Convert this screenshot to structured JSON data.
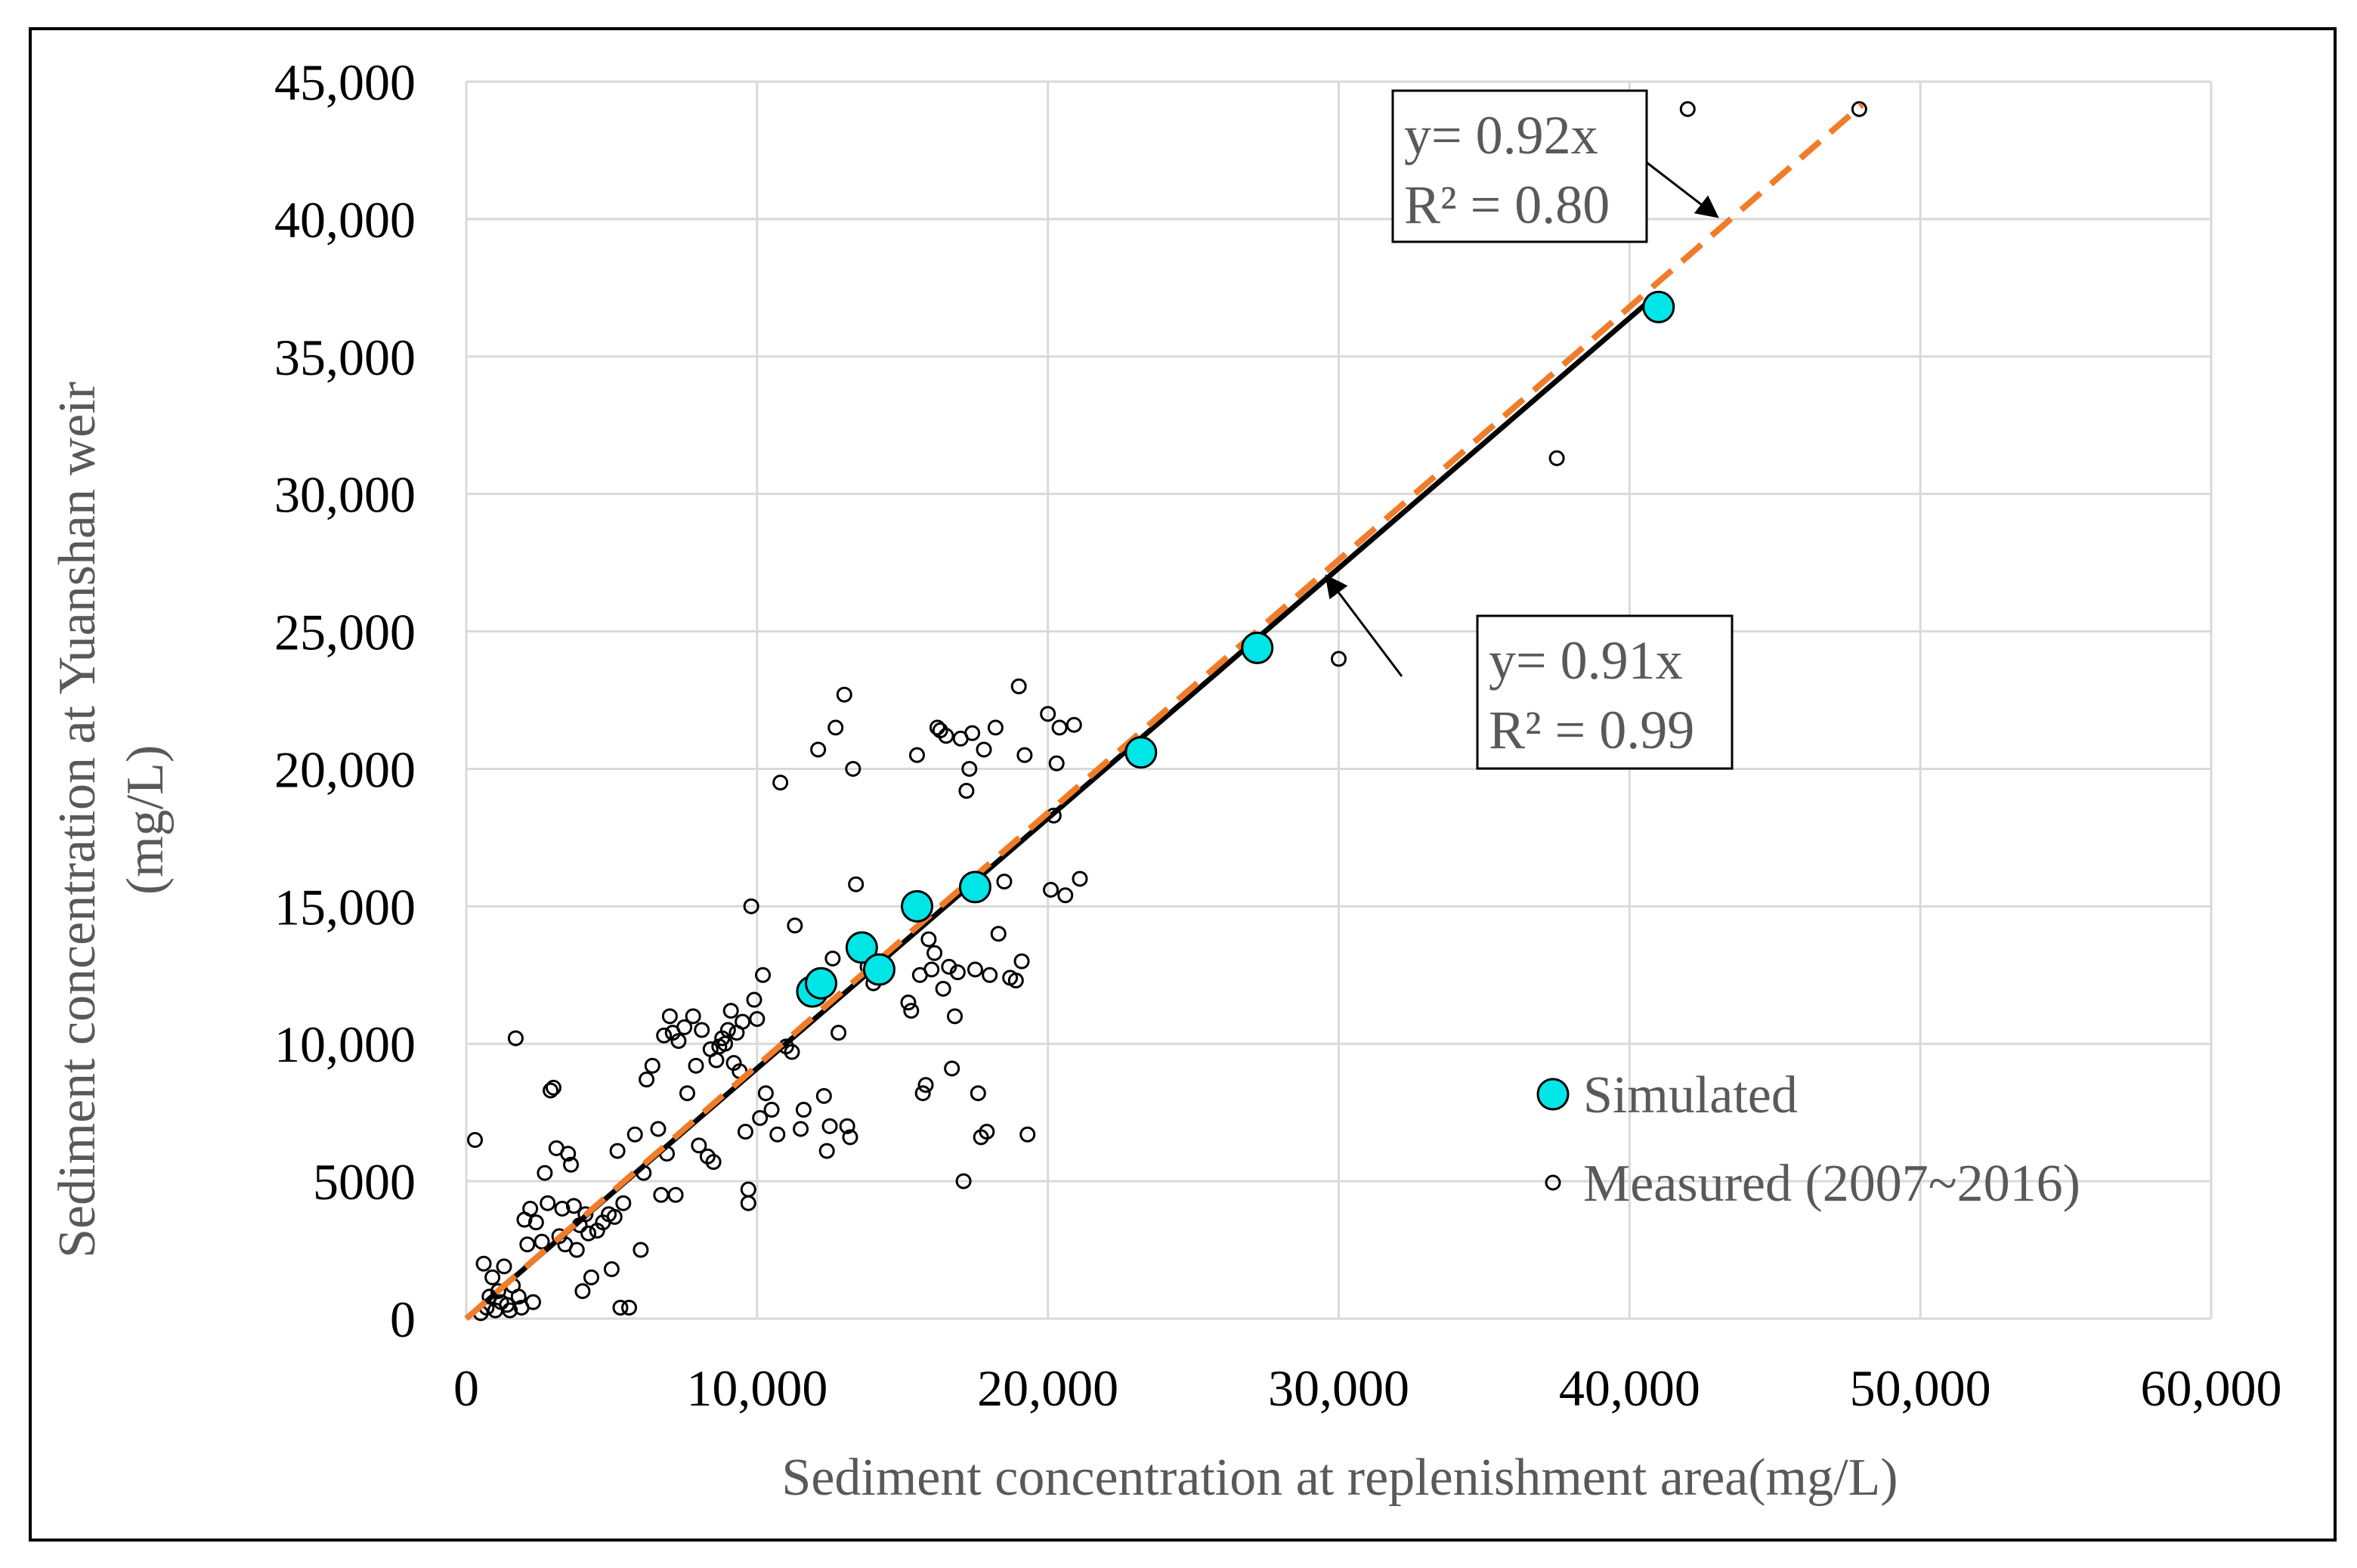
{
  "chart_data": {
    "type": "scatter",
    "title": "",
    "xlabel": "Sediment concentration at replenishment area(mg/L)",
    "ylabel_line1": "Sediment concentration at Yuanshan weir",
    "ylabel_line2": "(mg/L)",
    "xlim": [
      0,
      60000
    ],
    "ylim": [
      0,
      45000
    ],
    "x_ticks": [
      {
        "value": 0,
        "label": "0"
      },
      {
        "value": 10000,
        "label": "10,000"
      },
      {
        "value": 20000,
        "label": "20,000"
      },
      {
        "value": 30000,
        "label": "30,000"
      },
      {
        "value": 40000,
        "label": "40,000"
      },
      {
        "value": 50000,
        "label": "50,000"
      },
      {
        "value": 60000,
        "label": "60,000"
      }
    ],
    "y_ticks": [
      {
        "value": 0,
        "label": "0"
      },
      {
        "value": 5000,
        "label": "5000"
      },
      {
        "value": 10000,
        "label": "10,000"
      },
      {
        "value": 15000,
        "label": "15,000"
      },
      {
        "value": 20000,
        "label": "20,000"
      },
      {
        "value": 25000,
        "label": "25,000"
      },
      {
        "value": 30000,
        "label": "30,000"
      },
      {
        "value": 35000,
        "label": "35,000"
      },
      {
        "value": 40000,
        "label": "40,000"
      },
      {
        "value": 45000,
        "label": "45,000"
      }
    ],
    "grid": true,
    "legend_position": "bottom-right",
    "series": [
      {
        "name": "Simulated",
        "color": "#00E5E5",
        "marker": "filled-circle",
        "points": [
          [
            11900,
            11900
          ],
          [
            12200,
            12200
          ],
          [
            13600,
            13500
          ],
          [
            14200,
            12700
          ],
          [
            15500,
            15000
          ],
          [
            17500,
            15700
          ],
          [
            23200,
            20600
          ],
          [
            27200,
            24400
          ],
          [
            41000,
            36800
          ]
        ]
      },
      {
        "name": "Measured (2007~2016)",
        "color": "#000000",
        "marker": "open-circle",
        "points": [
          [
            300,
            6500
          ],
          [
            500,
            200
          ],
          [
            600,
            2000
          ],
          [
            700,
            400
          ],
          [
            800,
            800
          ],
          [
            900,
            1500
          ],
          [
            1000,
            300
          ],
          [
            1100,
            1000
          ],
          [
            1200,
            600
          ],
          [
            1300,
            1900
          ],
          [
            1400,
            500
          ],
          [
            1500,
            300
          ],
          [
            1600,
            1200
          ],
          [
            1700,
            10200
          ],
          [
            1800,
            800
          ],
          [
            1900,
            400
          ],
          [
            2000,
            3600
          ],
          [
            2100,
            2700
          ],
          [
            2200,
            4000
          ],
          [
            2300,
            600
          ],
          [
            2400,
            3500
          ],
          [
            2600,
            2800
          ],
          [
            2700,
            5300
          ],
          [
            2800,
            4200
          ],
          [
            2900,
            8300
          ],
          [
            3000,
            8400
          ],
          [
            3100,
            6200
          ],
          [
            3200,
            3000
          ],
          [
            3300,
            4000
          ],
          [
            3400,
            2700
          ],
          [
            3500,
            6000
          ],
          [
            3600,
            5600
          ],
          [
            3700,
            4100
          ],
          [
            3800,
            2500
          ],
          [
            3900,
            3400
          ],
          [
            4000,
            1000
          ],
          [
            4100,
            3800
          ],
          [
            4200,
            3100
          ],
          [
            4300,
            1500
          ],
          [
            4500,
            3200
          ],
          [
            4700,
            3500
          ],
          [
            4900,
            3800
          ],
          [
            5000,
            1800
          ],
          [
            5100,
            3700
          ],
          [
            5200,
            6100
          ],
          [
            5300,
            400
          ],
          [
            5400,
            4200
          ],
          [
            5600,
            400
          ],
          [
            5800,
            6700
          ],
          [
            6000,
            2500
          ],
          [
            6100,
            5300
          ],
          [
            6200,
            8700
          ],
          [
            6400,
            9200
          ],
          [
            6600,
            6900
          ],
          [
            6700,
            4500
          ],
          [
            6800,
            10300
          ],
          [
            6900,
            6000
          ],
          [
            7000,
            11000
          ],
          [
            7100,
            10400
          ],
          [
            7200,
            4500
          ],
          [
            7300,
            10100
          ],
          [
            7500,
            10600
          ],
          [
            7600,
            8200
          ],
          [
            7800,
            11000
          ],
          [
            7900,
            9200
          ],
          [
            8000,
            6300
          ],
          [
            8100,
            10500
          ],
          [
            8300,
            5900
          ],
          [
            8400,
            9800
          ],
          [
            8500,
            5700
          ],
          [
            8600,
            9400
          ],
          [
            8700,
            9900
          ],
          [
            8800,
            10200
          ],
          [
            8900,
            10000
          ],
          [
            9000,
            10500
          ],
          [
            9100,
            11200
          ],
          [
            9200,
            9300
          ],
          [
            9300,
            10400
          ],
          [
            9400,
            9000
          ],
          [
            9500,
            10800
          ],
          [
            9600,
            6800
          ],
          [
            9700,
            4200
          ],
          [
            9700,
            4700
          ],
          [
            9800,
            15000
          ],
          [
            9900,
            11600
          ],
          [
            10000,
            10900
          ],
          [
            10100,
            7300
          ],
          [
            10200,
            12500
          ],
          [
            10300,
            8200
          ],
          [
            10500,
            7600
          ],
          [
            10700,
            6700
          ],
          [
            10800,
            19500
          ],
          [
            11000,
            9900
          ],
          [
            11200,
            9700
          ],
          [
            11300,
            14300
          ],
          [
            11500,
            6900
          ],
          [
            11600,
            7600
          ],
          [
            11800,
            11800
          ],
          [
            12100,
            20700
          ],
          [
            12300,
            8100
          ],
          [
            12400,
            6100
          ],
          [
            12500,
            7000
          ],
          [
            12600,
            13100
          ],
          [
            12700,
            21500
          ],
          [
            12800,
            10400
          ],
          [
            13000,
            22700
          ],
          [
            13100,
            7000
          ],
          [
            13200,
            6600
          ],
          [
            13300,
            20000
          ],
          [
            13400,
            15800
          ],
          [
            13600,
            13600
          ],
          [
            13800,
            12800
          ],
          [
            14000,
            12200
          ],
          [
            15200,
            11500
          ],
          [
            15300,
            11200
          ],
          [
            15500,
            20500
          ],
          [
            15600,
            12500
          ],
          [
            15700,
            8200
          ],
          [
            15800,
            8500
          ],
          [
            15900,
            13800
          ],
          [
            16000,
            12700
          ],
          [
            16100,
            13300
          ],
          [
            16200,
            21500
          ],
          [
            16300,
            21400
          ],
          [
            16400,
            12000
          ],
          [
            16500,
            21200
          ],
          [
            16600,
            12800
          ],
          [
            16700,
            9100
          ],
          [
            16800,
            11000
          ],
          [
            16900,
            12600
          ],
          [
            17000,
            21100
          ],
          [
            17100,
            5000
          ],
          [
            17200,
            19200
          ],
          [
            17300,
            20000
          ],
          [
            17400,
            21300
          ],
          [
            17500,
            12700
          ],
          [
            17600,
            8200
          ],
          [
            17700,
            6600
          ],
          [
            17800,
            20700
          ],
          [
            17900,
            6800
          ],
          [
            18000,
            12500
          ],
          [
            18200,
            21500
          ],
          [
            18300,
            14000
          ],
          [
            18500,
            15900
          ],
          [
            18700,
            12400
          ],
          [
            18900,
            12300
          ],
          [
            19000,
            23000
          ],
          [
            19100,
            13000
          ],
          [
            19200,
            20500
          ],
          [
            19300,
            6700
          ],
          [
            20000,
            22000
          ],
          [
            20100,
            15600
          ],
          [
            20200,
            18300
          ],
          [
            20300,
            20200
          ],
          [
            20400,
            21500
          ],
          [
            20600,
            15400
          ],
          [
            20900,
            21600
          ],
          [
            21100,
            16000
          ],
          [
            30000,
            24000
          ],
          [
            37500,
            31300
          ],
          [
            42000,
            44000
          ],
          [
            47900,
            44000
          ]
        ]
      }
    ],
    "fit_lines": [
      {
        "label_line1": "y= 0.92x",
        "label_line2": "R² = 0.80",
        "slope": 0.92,
        "x_range": [
          0,
          48000
        ],
        "color": "#F07C2A",
        "style": "dashed"
      },
      {
        "label_line1": "y= 0.91x",
        "label_line2": "R² = 0.99",
        "slope": 0.91,
        "x_range": [
          0,
          41000
        ],
        "color": "#000000",
        "style": "solid"
      }
    ]
  }
}
